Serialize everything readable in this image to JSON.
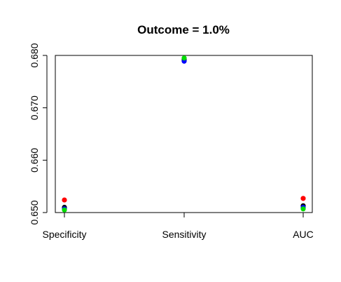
{
  "chart_data": {
    "type": "scatter",
    "title": "Outcome = 1.0%",
    "xlabel": "",
    "ylabel": "",
    "categories": [
      "Specificity",
      "Sensitivity",
      "AUC"
    ],
    "ylim": [
      0.65,
      0.68
    ],
    "yticks": [
      0.65,
      0.66,
      0.67,
      0.68
    ],
    "ytick_labels": [
      "0.650",
      "0.660",
      "0.670",
      "0.680"
    ],
    "grid": false,
    "series": [
      {
        "color": "#ff0000",
        "values": [
          0.6524,
          0.6794,
          0.6527
        ]
      },
      {
        "color": "#000000",
        "values": [
          0.651,
          0.6791,
          0.6513
        ]
      },
      {
        "color": "#0000ff",
        "values": [
          0.6507,
          0.6789,
          0.651
        ]
      },
      {
        "color": "#00dd00",
        "values": [
          0.6505,
          0.6795,
          0.6507
        ]
      }
    ]
  }
}
